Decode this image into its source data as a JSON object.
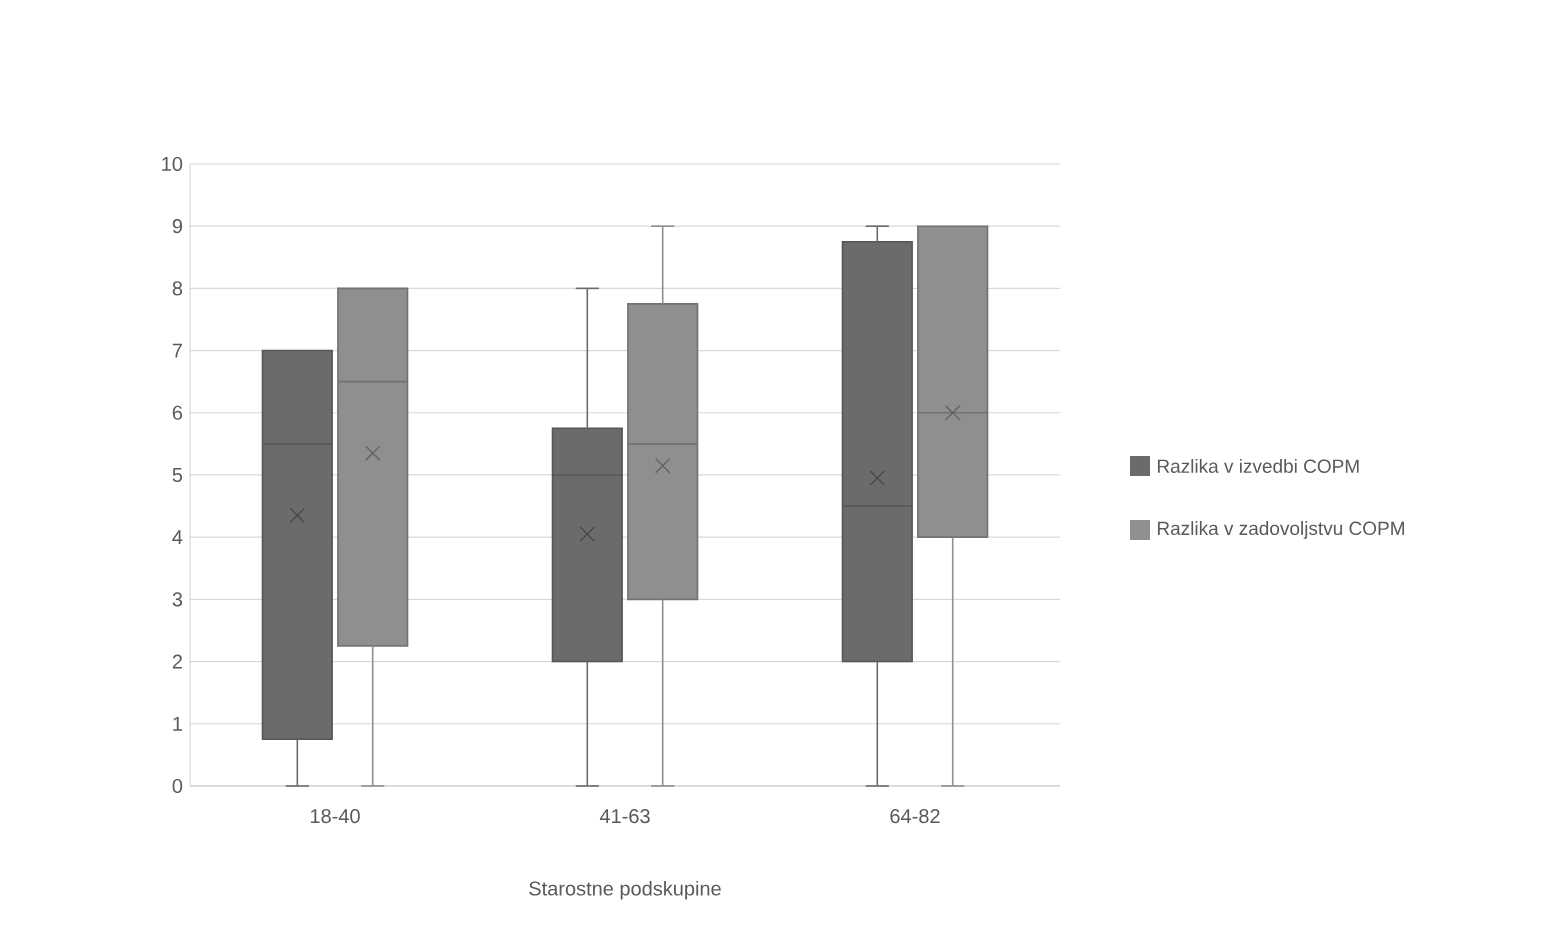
{
  "chart_data": {
    "type": "box",
    "xlabel": "Starostne podskupine",
    "categories": [
      "18-40",
      "41-63",
      "64-82"
    ],
    "series": [
      {
        "name": "Razlika v izvedbi COPM",
        "color": "#6b6b6b",
        "boxes": [
          {
            "low": 0,
            "q1": 0.75,
            "median": 5.5,
            "q3": 7,
            "high": 7,
            "mean": 4.35
          },
          {
            "low": 0,
            "q1": 2,
            "median": 5,
            "q3": 5.75,
            "high": 8,
            "mean": 4.05
          },
          {
            "low": 0,
            "q1": 2,
            "median": 4.5,
            "q3": 8.75,
            "high": 9,
            "mean": 4.95
          }
        ]
      },
      {
        "name": "Razlika v zadovoljstvu COPM",
        "color": "#8f8f8f",
        "boxes": [
          {
            "low": 0,
            "q1": 2.25,
            "median": 6.5,
            "q3": 8,
            "high": 8,
            "mean": 5.35
          },
          {
            "low": 0,
            "q1": 3,
            "median": 5.5,
            "q3": 7.75,
            "high": 9,
            "mean": 5.15
          },
          {
            "low": 0,
            "q1": 4,
            "median": 6,
            "q3": 9,
            "high": 9,
            "mean": 6
          }
        ]
      }
    ],
    "ylim": [
      0,
      10
    ],
    "yticks": [
      0,
      1,
      2,
      3,
      4,
      5,
      6,
      7,
      8,
      9,
      10
    ],
    "grid": "y",
    "legend": "right"
  }
}
